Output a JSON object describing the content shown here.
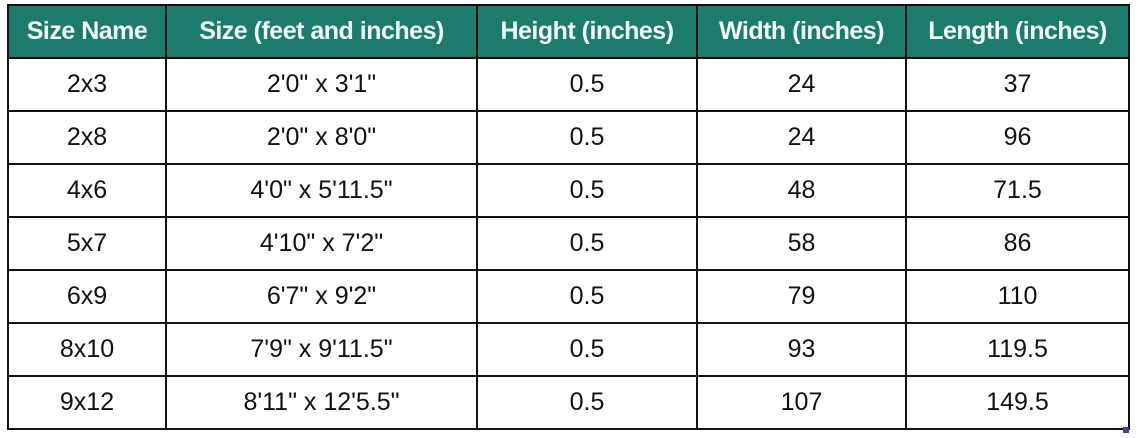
{
  "table": {
    "headers": [
      "Size Name",
      "Size (feet and inches)",
      "Height (inches)",
      "Width (inches)",
      "Length (inches)"
    ],
    "rows": [
      [
        "2x3",
        "2'0\" x 3'1\"",
        "0.5",
        "24",
        "37"
      ],
      [
        "2x8",
        "2'0\" x 8'0\"",
        "0.5",
        "24",
        "96"
      ],
      [
        "4x6",
        "4'0\" x 5'11.5\"",
        "0.5",
        "48",
        "71.5"
      ],
      [
        "5x7",
        "4'10\" x 7'2\"",
        "0.5",
        "58",
        "86"
      ],
      [
        "6x9",
        "6'7\" x 9'2\"",
        "0.5",
        "79",
        "110"
      ],
      [
        "8x10",
        "7'9\" x 9'11.5\"",
        "0.5",
        "93",
        "119.5"
      ],
      [
        "9x12",
        "8'11\" x 12'5.5\"",
        "0.5",
        "107",
        "149.5"
      ]
    ],
    "header_color": "#1d7b6b"
  }
}
